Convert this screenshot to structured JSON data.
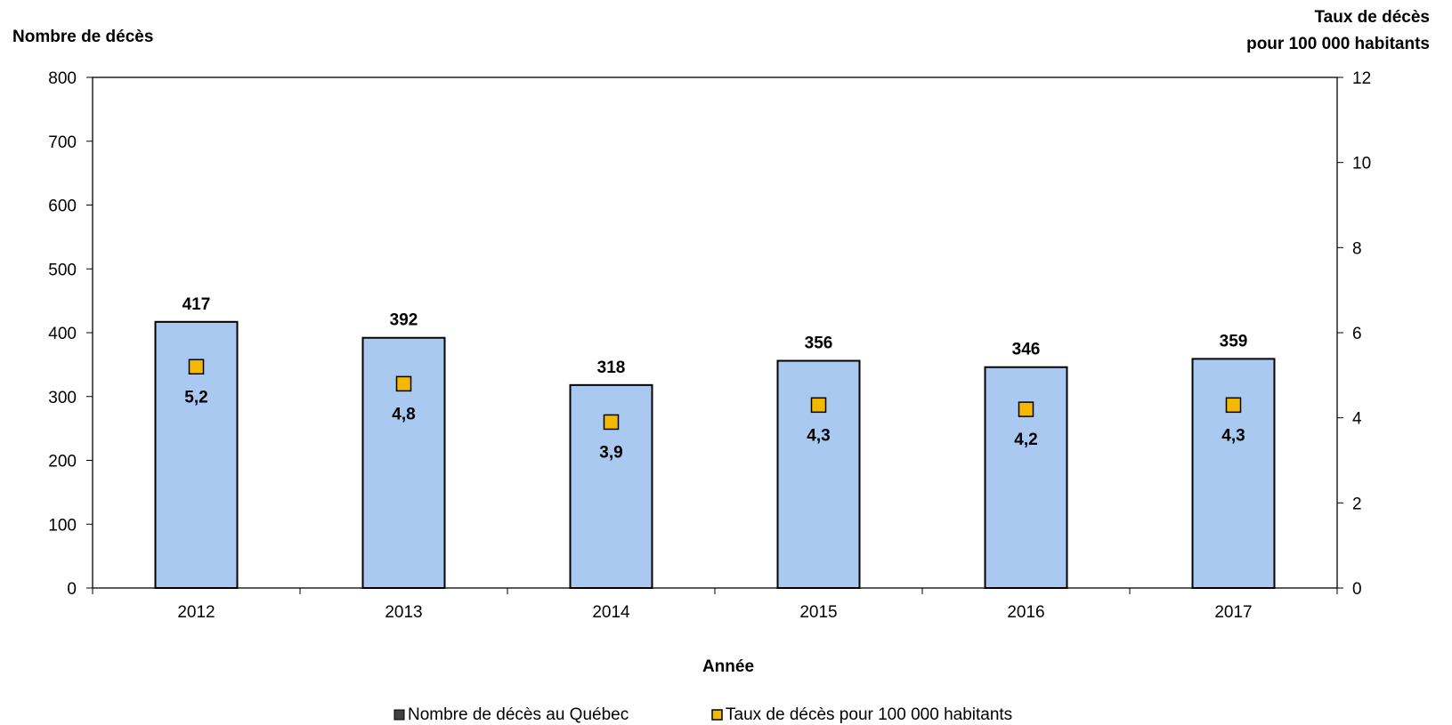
{
  "chart_data": {
    "type": "bar",
    "categories": [
      "2012",
      "2013",
      "2014",
      "2015",
      "2016",
      "2017"
    ],
    "xlabel": "Année",
    "ylabel": "Nombre de décès",
    "ylabel_right": [
      "Taux de décès",
      "pour 100 000 habitants"
    ],
    "ylim": [
      0,
      800
    ],
    "y_ticks": [
      0,
      100,
      200,
      300,
      400,
      500,
      600,
      700,
      800
    ],
    "ylim_right": [
      0,
      12
    ],
    "y_ticks_right": [
      0,
      2,
      4,
      6,
      8,
      10,
      12
    ],
    "series": [
      {
        "name": "Nombre de décès au Québec",
        "type": "bar",
        "axis": "left",
        "values": [
          417,
          392,
          318,
          356,
          346,
          359
        ],
        "labels": [
          "417",
          "392",
          "318",
          "356",
          "346",
          "359"
        ],
        "color": "#a9c9f0"
      },
      {
        "name": "Taux de décès pour 100 000 habitants",
        "type": "scatter",
        "axis": "right",
        "marker": "square",
        "values": [
          5.2,
          4.8,
          3.9,
          4.3,
          4.2,
          4.3
        ],
        "labels": [
          "5,2",
          "4,8",
          "3,9",
          "4,3",
          "4,2",
          "4,3"
        ],
        "color": "#f5b800"
      }
    ],
    "grid": false,
    "legend_position": "bottom"
  }
}
